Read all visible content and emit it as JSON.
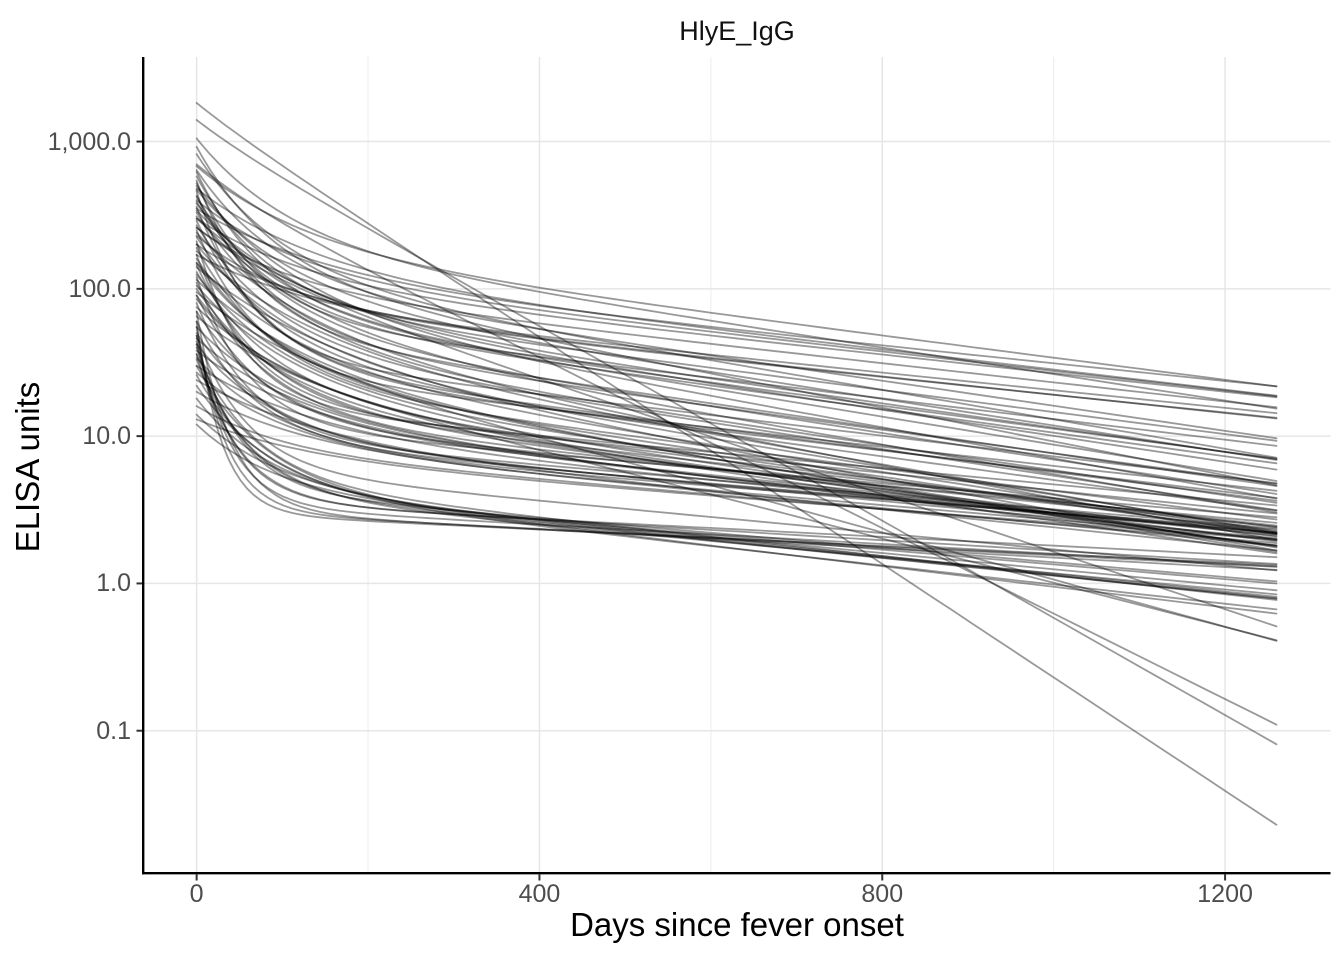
{
  "chart_data": {
    "type": "line",
    "title": "HlyE_IgG",
    "xlabel": "Days since fever onset",
    "ylabel": "ELISA units",
    "y_scale": "log10",
    "xlim": [
      -62,
      1323
    ],
    "ylim": [
      0.0109,
      3750
    ],
    "x_range_days": [
      0,
      1260
    ],
    "grid": "majors on both axes, x minors at 200/600/1000, no y minors",
    "legend": "none",
    "x_ticks": [
      {
        "value": 0,
        "label": "0"
      },
      {
        "value": 400,
        "label": "400"
      },
      {
        "value": 800,
        "label": "800"
      },
      {
        "value": 1200,
        "label": "1200"
      }
    ],
    "x_minor_ticks": [
      200,
      600,
      1000
    ],
    "y_ticks": [
      {
        "value": 1000,
        "label": "1,000.0"
      },
      {
        "value": 100,
        "label": "100.0"
      },
      {
        "value": 10,
        "label": "10.0"
      },
      {
        "value": 1,
        "label": "1.0"
      },
      {
        "value": 0.1,
        "label": "0.1"
      }
    ],
    "colors": {
      "line": "rgba(0,0,0,0.40)",
      "grid_major": "#e6e6e6",
      "grid_minor": "#eeeeee",
      "axis_line": "#000000",
      "tick_mark": "#333333",
      "tick_label": "#4d4d4d",
      "title_text": "#111111",
      "background": "#ffffff"
    },
    "n_curves": 93,
    "model": "log10(y(t)) = log10(y0) - A*(1 - exp(-t/tau)) - s*(t/1000), t in days 0..1260",
    "series_param_keys": [
      "y0",
      "A",
      "tau",
      "s"
    ],
    "series_params": [
      [
        1828,
        0.05,
        60,
        3.85
      ],
      [
        1400,
        0.08,
        70,
        3.3
      ],
      [
        700,
        0.15,
        80,
        2.9
      ],
      [
        260,
        0.25,
        100,
        1.95
      ],
      [
        150,
        0.55,
        80,
        1.6
      ],
      [
        90,
        0.45,
        70,
        1.5
      ],
      [
        920,
        0.85,
        90,
        1.15
      ],
      [
        1050,
        0.7,
        110,
        0.9
      ],
      [
        820,
        0.8,
        100,
        1.0
      ],
      [
        680,
        0.55,
        130,
        0.75
      ],
      [
        480,
        0.55,
        140,
        0.68
      ],
      [
        400,
        0.5,
        120,
        0.66
      ],
      [
        350,
        0.45,
        150,
        0.6
      ],
      [
        300,
        0.42,
        130,
        0.63
      ],
      [
        260,
        0.4,
        110,
        0.65
      ],
      [
        230,
        0.45,
        100,
        0.6
      ],
      [
        200,
        0.4,
        120,
        0.62
      ],
      [
        170,
        0.35,
        140,
        0.6
      ],
      [
        640,
        0.75,
        95,
        0.85
      ],
      [
        580,
        0.85,
        85,
        0.75
      ],
      [
        520,
        0.9,
        75,
        0.7
      ],
      [
        470,
        0.7,
        115,
        0.9
      ],
      [
        420,
        0.8,
        90,
        0.8
      ],
      [
        380,
        0.75,
        105,
        0.78
      ],
      [
        340,
        0.65,
        125,
        0.88
      ],
      [
        300,
        0.6,
        135,
        0.82
      ],
      [
        620,
        0.9,
        80,
        0.95
      ],
      [
        540,
        1.0,
        70,
        0.85
      ],
      [
        500,
        0.8,
        120,
        1.05
      ],
      [
        460,
        1.1,
        60,
        0.7
      ],
      [
        430,
        0.95,
        90,
        0.8
      ],
      [
        390,
        0.85,
        100,
        0.9
      ],
      [
        360,
        1.05,
        75,
        0.75
      ],
      [
        330,
        0.9,
        110,
        0.85
      ],
      [
        310,
        0.75,
        130,
        1.0
      ],
      [
        290,
        1.0,
        85,
        0.7
      ],
      [
        270,
        0.8,
        95,
        0.9
      ],
      [
        250,
        0.95,
        70,
        0.65
      ],
      [
        240,
        0.7,
        140,
        1.1
      ],
      [
        225,
        0.85,
        105,
        0.8
      ],
      [
        210,
        1.1,
        55,
        0.55
      ],
      [
        200,
        0.75,
        120,
        0.95
      ],
      [
        190,
        0.9,
        90,
        0.75
      ],
      [
        180,
        0.65,
        150,
        1.0
      ],
      [
        170,
        1.0,
        65,
        0.6
      ],
      [
        160,
        0.8,
        100,
        0.85
      ],
      [
        150,
        0.7,
        125,
        0.9
      ],
      [
        145,
        0.95,
        80,
        0.65
      ],
      [
        140,
        0.6,
        160,
        1.05
      ],
      [
        130,
        0.85,
        95,
        0.7
      ],
      [
        125,
        0.75,
        110,
        0.8
      ],
      [
        120,
        1.0,
        60,
        0.5
      ],
      [
        115,
        0.65,
        140,
        0.95
      ],
      [
        110,
        0.9,
        85,
        0.6
      ],
      [
        105,
        0.7,
        120,
        0.85
      ],
      [
        100,
        0.8,
        100,
        0.7
      ],
      [
        95,
        0.6,
        150,
        0.9
      ],
      [
        90,
        0.85,
        75,
        0.55
      ],
      [
        85,
        0.7,
        110,
        0.75
      ],
      [
        80,
        0.9,
        65,
        0.5
      ],
      [
        75,
        0.6,
        130,
        0.85
      ],
      [
        70,
        0.75,
        90,
        0.6
      ],
      [
        65,
        0.55,
        140,
        0.8
      ],
      [
        60,
        0.8,
        70,
        0.5
      ],
      [
        55,
        0.6,
        110,
        0.7
      ],
      [
        50,
        0.7,
        85,
        0.55
      ],
      [
        46,
        0.55,
        120,
        0.65
      ],
      [
        42,
        0.65,
        95,
        0.5
      ],
      [
        38,
        0.5,
        130,
        0.6
      ],
      [
        34,
        0.6,
        100,
        0.45
      ],
      [
        30,
        0.45,
        140,
        0.55
      ],
      [
        27,
        0.5,
        110,
        0.5
      ],
      [
        24,
        0.4,
        150,
        0.6
      ],
      [
        20,
        0.35,
        120,
        0.55
      ],
      [
        16,
        0.3,
        100,
        0.5
      ],
      [
        13,
        0.25,
        130,
        0.45
      ],
      [
        48,
        0.9,
        60,
        0.55
      ],
      [
        44,
        1.0,
        50,
        0.5
      ],
      [
        40,
        0.95,
        55,
        0.6
      ],
      [
        36,
        0.85,
        70,
        0.65
      ],
      [
        33,
        0.9,
        65,
        0.55
      ],
      [
        30,
        0.8,
        80,
        0.7
      ],
      [
        26,
        0.75,
        75,
        0.6
      ],
      [
        22,
        0.7,
        90,
        0.65
      ],
      [
        18,
        0.6,
        85,
        0.6
      ],
      [
        14,
        0.5,
        95,
        0.55
      ],
      [
        12,
        0.45,
        90,
        0.5
      ],
      [
        55,
        1.25,
        35,
        0.3
      ],
      [
        48,
        1.15,
        40,
        0.33
      ],
      [
        42,
        1.05,
        45,
        0.35
      ],
      [
        60,
        1.3,
        30,
        0.28
      ],
      [
        36,
        1.0,
        50,
        0.3
      ],
      [
        70,
        1.35,
        40,
        0.32
      ]
    ]
  }
}
